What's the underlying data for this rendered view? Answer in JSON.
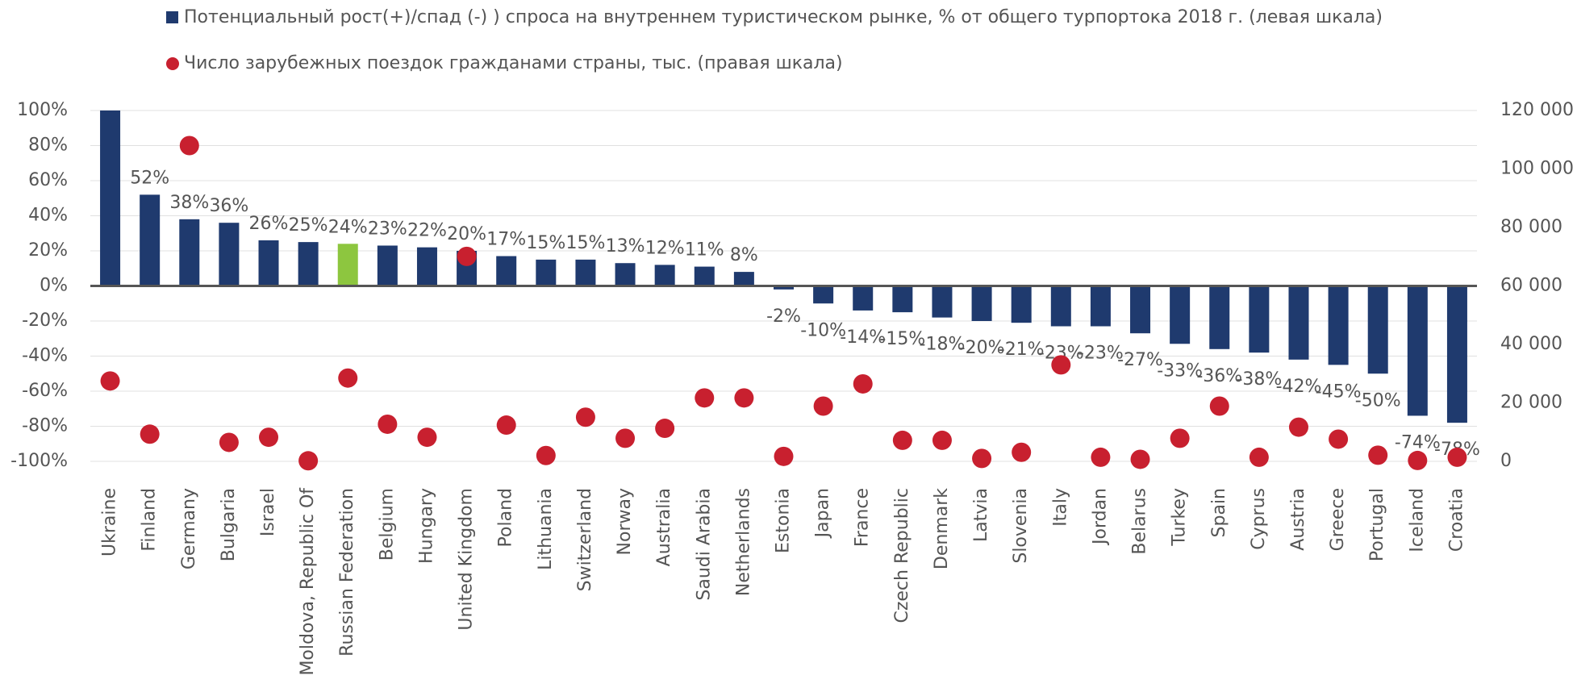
{
  "chart_data": {
    "type": "bar",
    "categories": [
      "Ukraine",
      "Finland",
      "Germany",
      "Bulgaria",
      "Israel",
      "Moldova, Republic Of",
      "Russian Federation",
      "Belgium",
      "Hungary",
      "United Kingdom",
      "Poland",
      "Lithuania",
      "Switzerland",
      "Norway",
      "Australia",
      "Saudi Arabia",
      "Netherlands",
      "Estonia",
      "Japan",
      "France",
      "Czech Republic",
      "Denmark",
      "Latvia",
      "Slovenia",
      "Italy",
      "Jordan",
      "Belarus",
      "Turkey",
      "Spain",
      "Cyprus",
      "Austria",
      "Greece",
      "Portugal",
      "Iceland",
      "Croatia"
    ],
    "series": [
      {
        "name": "Потенциальный рост(+)/спад (-) ) спроса на внутреннем туристическом рынке, % от общего турпортока 2018 г. (левая шкала)",
        "type": "bar",
        "color": "#1f3a6e",
        "point_colors": [
          "#1f3a6e",
          "#1f3a6e",
          "#1f3a6e",
          "#1f3a6e",
          "#1f3a6e",
          "#1f3a6e",
          "#8dc63f",
          "#1f3a6e",
          "#1f3a6e",
          "#1f3a6e",
          "#1f3a6e",
          "#1f3a6e",
          "#1f3a6e",
          "#1f3a6e",
          "#1f3a6e",
          "#1f3a6e",
          "#1f3a6e",
          "#1f3a6e",
          "#1f3a6e",
          "#1f3a6e",
          "#1f3a6e",
          "#1f3a6e",
          "#1f3a6e",
          "#1f3a6e",
          "#1f3a6e",
          "#1f3a6e",
          "#1f3a6e",
          "#1f3a6e",
          "#1f3a6e",
          "#1f3a6e",
          "#1f3a6e",
          "#1f3a6e",
          "#1f3a6e",
          "#1f3a6e",
          "#1f3a6e"
        ],
        "values": [
          100,
          52,
          38,
          36,
          26,
          25,
          24,
          23,
          22,
          20,
          17,
          15,
          15,
          13,
          12,
          11,
          8,
          -2,
          -10,
          -14,
          -15,
          -18,
          -20,
          -21,
          -23,
          -23,
          -27,
          -33,
          -36,
          -38,
          -42,
          -45,
          -50,
          -74,
          -78
        ],
        "value_labels": [
          null,
          "52%",
          "38%",
          "36%",
          "26%",
          "25%",
          "24%",
          "23%",
          "22%",
          "20%",
          "17%",
          "15%",
          "15%",
          "13%",
          "12%",
          "11%",
          "8%",
          "-2%",
          "-10%",
          "-14%",
          "-15%",
          "-18%",
          "-20%",
          "-21%",
          "-23%",
          "-23%",
          "-27%",
          "-33%",
          "-36%",
          "-38%",
          "-42%",
          "-45%",
          "-50%",
          "-74%",
          "-78%"
        ]
      },
      {
        "name": "Число зарубежных поездок гражданами страны, тыс. (правая шкала)",
        "type": "scatter",
        "axis": "y2",
        "color": "#c8202f",
        "values": [
          27500,
          9300,
          108000,
          6500,
          8250,
          200,
          28500,
          12700,
          8250,
          70100,
          12400,
          2000,
          15100,
          7900,
          11300,
          21700,
          21700,
          1700,
          18900,
          26500,
          7200,
          7200,
          1000,
          3100,
          33000,
          1400,
          700,
          7900,
          18900,
          1400,
          11700,
          7600,
          2100,
          300,
          1400
        ]
      }
    ],
    "ylim": [
      -100,
      100
    ],
    "yticks": [
      {
        "value": -100,
        "label": "-100%"
      },
      {
        "value": -80,
        "label": "-80%"
      },
      {
        "value": -60,
        "label": "-60%"
      },
      {
        "value": -40,
        "label": "-40%"
      },
      {
        "value": -20,
        "label": "-20%"
      },
      {
        "value": 0,
        "label": "0%"
      },
      {
        "value": 20,
        "label": "20%"
      },
      {
        "value": 40,
        "label": "40%"
      },
      {
        "value": 60,
        "label": "60%"
      },
      {
        "value": 80,
        "label": "80%"
      },
      {
        "value": 100,
        "label": "100%"
      }
    ],
    "y2lim": [
      0,
      120000
    ],
    "y2ticks": [
      0,
      {
        "value": 20000,
        "label": "20 000"
      },
      {
        "value": 40000,
        "label": "40 000"
      },
      {
        "value": 60000,
        "label": "60 000"
      },
      {
        "value": 80000,
        "label": "80 000"
      },
      {
        "value": 100000,
        "label": "100 000"
      },
      {
        "value": 120000,
        "label": "120 000"
      }
    ],
    "grid": true
  }
}
